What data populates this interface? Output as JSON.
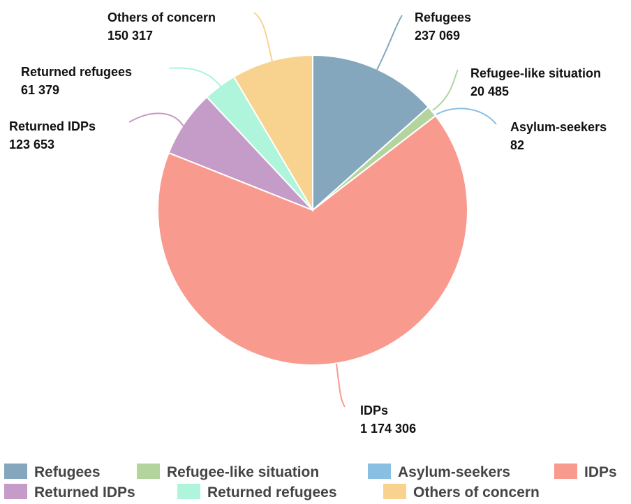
{
  "chart_data": {
    "type": "pie",
    "title": "",
    "start_angle_deg": 0,
    "direction": "clockwise",
    "legend_position": "bottom",
    "slices": [
      {
        "label": "Refugees",
        "value": 237069,
        "value_label": "237 069",
        "color": "#84a7bd"
      },
      {
        "label": "Refugee-like situation",
        "value": 20485,
        "value_label": "20 485",
        "color": "#b3d59d"
      },
      {
        "label": "Asylum-seekers",
        "value": 82,
        "value_label": "82",
        "color": "#89bfe2"
      },
      {
        "label": "IDPs",
        "value": 1174306,
        "value_label": "1 174 306",
        "color": "#f99a8f"
      },
      {
        "label": "Returned IDPs",
        "value": 123653,
        "value_label": "123 653",
        "color": "#c49cc7"
      },
      {
        "label": "Returned refugees",
        "value": 61379,
        "value_label": "61 379",
        "color": "#aef5dc"
      },
      {
        "label": "Others of concern",
        "value": 150317,
        "value_label": "150 317",
        "color": "#f8d38f"
      }
    ]
  }
}
